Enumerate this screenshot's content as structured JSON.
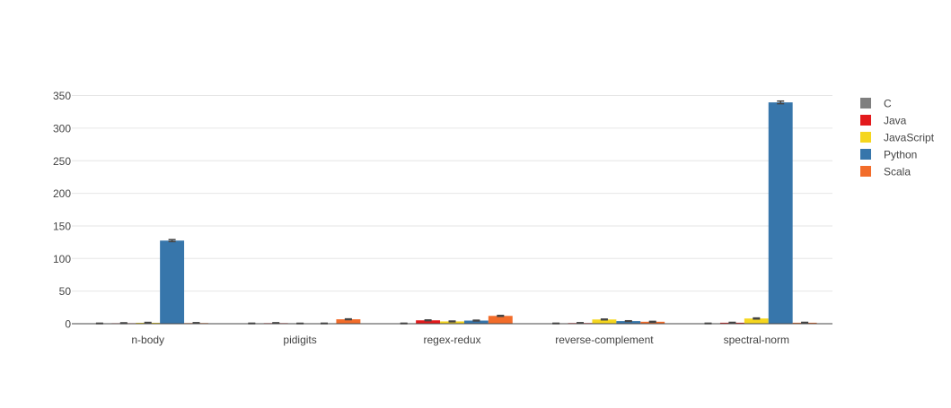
{
  "chart_data": {
    "type": "bar",
    "categories": [
      "n-body",
      "pidigits",
      "regex-redux",
      "reverse-complement",
      "spectral-norm"
    ],
    "series": [
      {
        "name": "C",
        "color": "#7f7f7f",
        "values": [
          0.3,
          0.3,
          0.3,
          0.3,
          0.3
        ],
        "error": [
          0.5,
          0.5,
          0.5,
          0.5,
          0.5
        ]
      },
      {
        "name": "Java",
        "color": "#e31a1c",
        "values": [
          0.8,
          0.9,
          5.2,
          1.0,
          1.5
        ],
        "error": [
          0.6,
          0.6,
          0.6,
          0.6,
          0.6
        ]
      },
      {
        "name": "JavaScript",
        "color": "#f5d61e",
        "values": [
          1.4,
          0.2,
          3.5,
          6.5,
          8.0
        ],
        "error": [
          0.6,
          0.5,
          0.6,
          0.6,
          0.8
        ]
      },
      {
        "name": "Python",
        "color": "#3776ab",
        "values": [
          127.5,
          0.3,
          4.8,
          4.0,
          339.5
        ],
        "error": [
          1.5,
          0.5,
          0.6,
          0.5,
          2.0
        ]
      },
      {
        "name": "Scala",
        "color": "#f26c2a",
        "values": [
          1.0,
          6.8,
          12.0,
          3.0,
          1.5
        ],
        "error": [
          0.6,
          0.6,
          0.7,
          0.6,
          0.6
        ]
      }
    ],
    "yticks": [
      0,
      50,
      100,
      150,
      200,
      250,
      300,
      350
    ],
    "ylim": [
      0,
      355
    ],
    "title": "",
    "xlabel": "",
    "ylabel": "",
    "grid": true,
    "legend_position": "right"
  }
}
